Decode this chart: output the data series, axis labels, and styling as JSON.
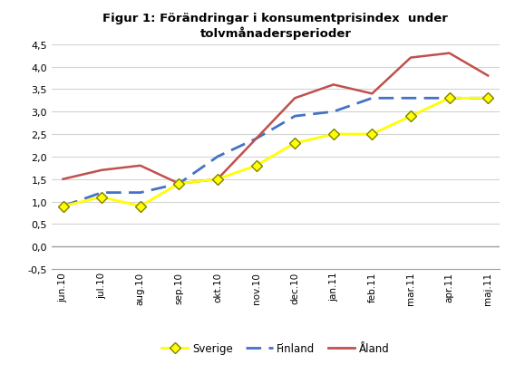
{
  "title": "Figur 1: Förändringar i konsumentprisindex  under\ntolvmånadersperioder",
  "categories": [
    "jun.10",
    "jul.10",
    "aug.10",
    "sep.10",
    "okt.10",
    "nov.10",
    "dec.10",
    "jan.11",
    "feb.11",
    "mar.11",
    "apr.11",
    "maj.11"
  ],
  "sverige": [
    0.9,
    1.1,
    0.9,
    1.4,
    1.5,
    1.8,
    2.3,
    2.5,
    2.5,
    2.9,
    3.3,
    3.3
  ],
  "finland": [
    0.9,
    1.2,
    1.2,
    1.4,
    2.0,
    2.4,
    2.9,
    3.0,
    3.3,
    3.3,
    3.3,
    3.3
  ],
  "aland": [
    1.5,
    1.7,
    1.8,
    1.4,
    1.5,
    2.4,
    3.3,
    3.6,
    3.4,
    4.2,
    4.3,
    3.8
  ],
  "sverige_color": "#ffff00",
  "sverige_edge_color": "#808000",
  "finland_color": "#4472c4",
  "aland_color": "#c0504d",
  "ylim": [
    -0.5,
    4.5
  ],
  "yticks": [
    -0.5,
    0.0,
    0.5,
    1.0,
    1.5,
    2.0,
    2.5,
    3.0,
    3.5,
    4.0,
    4.5
  ],
  "ytick_labels": [
    "-0,5",
    "0,0",
    "0,5",
    "1,0",
    "1,5",
    "2,0",
    "2,5",
    "3,0",
    "3,5",
    "4,0",
    "4,5"
  ],
  "legend_labels": [
    "Sverige",
    "Finland",
    "Åland"
  ],
  "background_color": "#ffffff",
  "plot_bg_color": "#ffffff",
  "grid_color": "#d3d3d3"
}
